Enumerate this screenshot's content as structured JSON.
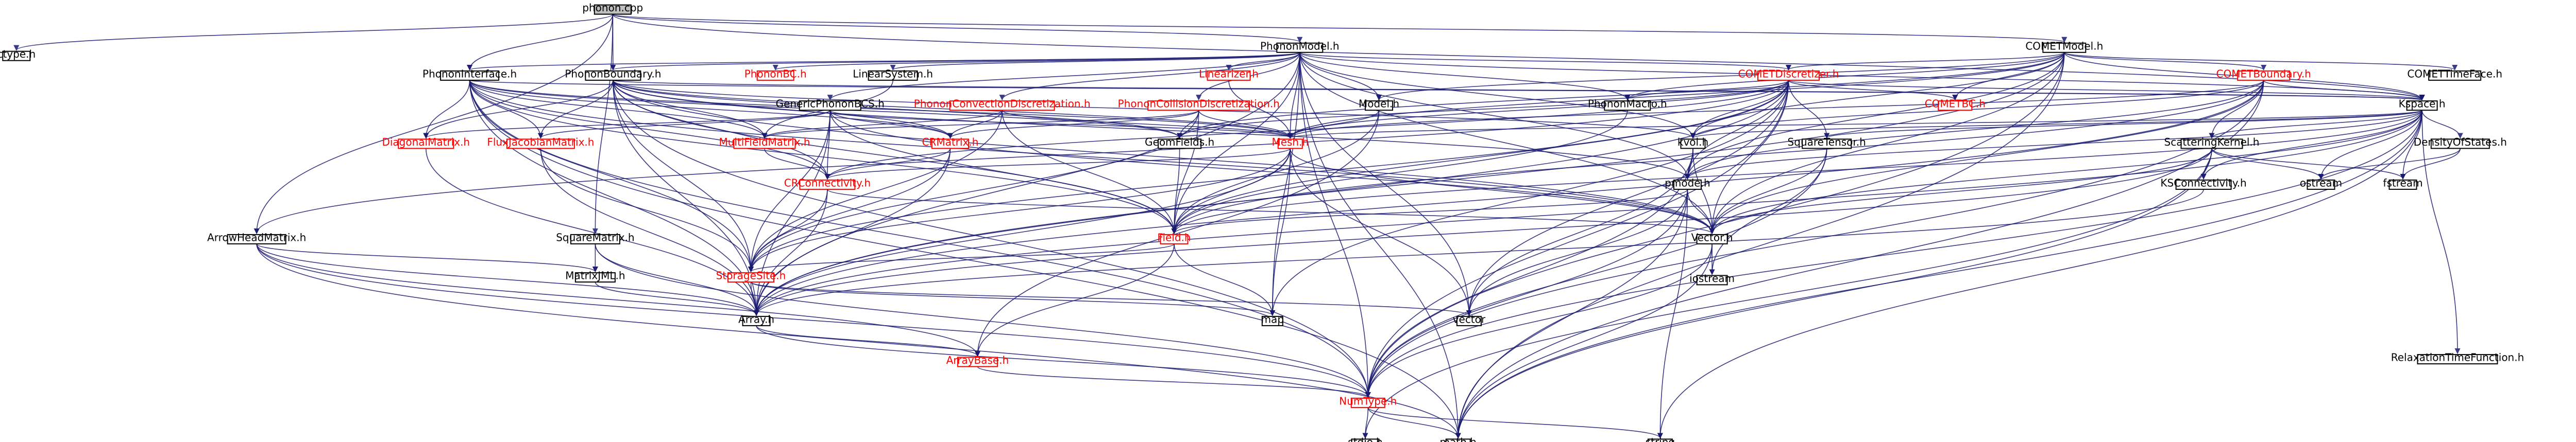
{
  "colors": {
    "edge": "#191970",
    "node_border": "#000000",
    "node_fill": "#ffffff",
    "root_fill": "#bfbfbf",
    "text_normal": "#000000",
    "text_linked": "#ff0000"
  },
  "root": "phonon.cpp",
  "nodes": [
    {
      "id": "phonon_cpp",
      "label": "phonon.cpp",
      "kind": "root"
    },
    {
      "id": "ctype_h",
      "label": "ctype.h",
      "kind": "normal"
    },
    {
      "id": "PhononModel_h",
      "label": "PhononModel.h",
      "kind": "normal"
    },
    {
      "id": "COMETModel_h",
      "label": "COMETModel.h",
      "kind": "normal"
    },
    {
      "id": "PhononInterface_h",
      "label": "PhononInterface.h",
      "kind": "normal"
    },
    {
      "id": "PhononBoundary_h",
      "label": "PhononBoundary.h",
      "kind": "normal"
    },
    {
      "id": "PhononBC_h",
      "label": "PhononBC.h",
      "kind": "linked"
    },
    {
      "id": "LinearSystem_h",
      "label": "LinearSystem.h",
      "kind": "normal"
    },
    {
      "id": "Linearizer_h",
      "label": "Linearizer.h",
      "kind": "linked"
    },
    {
      "id": "COMETDiscretizer_h",
      "label": "COMETDiscretizer.h",
      "kind": "linked"
    },
    {
      "id": "COMETBoundary_h",
      "label": "COMETBoundary.h",
      "kind": "linked"
    },
    {
      "id": "COMETTimeFace_h",
      "label": "COMETTimeFace.h",
      "kind": "normal"
    },
    {
      "id": "GenericPhononBCS_h",
      "label": "GenericPhononBCS.h",
      "kind": "normal"
    },
    {
      "id": "PhononConvectionDiscretization_h",
      "label": "PhononConvectionDiscretization.h",
      "kind": "linked"
    },
    {
      "id": "PhononCollisionDiscretization_h",
      "label": "PhononCollisionDiscretization.h",
      "kind": "linked"
    },
    {
      "id": "Model_h",
      "label": "Model.h",
      "kind": "normal"
    },
    {
      "id": "PhononMacro_h",
      "label": "PhononMacro.h",
      "kind": "normal"
    },
    {
      "id": "COMETBC_h",
      "label": "COMETBC.h",
      "kind": "linked"
    },
    {
      "id": "Kspace_h",
      "label": "Kspace.h",
      "kind": "normal"
    },
    {
      "id": "DiagonalMatrix_h",
      "label": "DiagonalMatrix.h",
      "kind": "linked"
    },
    {
      "id": "FluxJacobianMatrix_h",
      "label": "FluxJacobianMatrix.h",
      "kind": "linked"
    },
    {
      "id": "MultiFieldMatrix_h",
      "label": "MultiFieldMatrix.h",
      "kind": "linked"
    },
    {
      "id": "CRMatrix_h",
      "label": "CRMatrix.h",
      "kind": "linked"
    },
    {
      "id": "GeomFields_h",
      "label": "GeomFields.h",
      "kind": "normal"
    },
    {
      "id": "Mesh_h",
      "label": "Mesh.h",
      "kind": "linked"
    },
    {
      "id": "kvol_h",
      "label": "kvol.h",
      "kind": "normal"
    },
    {
      "id": "SquareTensor_h",
      "label": "SquareTensor.h",
      "kind": "normal"
    },
    {
      "id": "ScatteringKernel_h",
      "label": "ScatteringKernel.h",
      "kind": "normal"
    },
    {
      "id": "DensityOfStates_h",
      "label": "DensityOfStates.h",
      "kind": "normal"
    },
    {
      "id": "CRConnectivity_h",
      "label": "CRConnectivity.h",
      "kind": "linked"
    },
    {
      "id": "pmode_h",
      "label": "pmode.h",
      "kind": "normal"
    },
    {
      "id": "KSConnectivity_h",
      "label": "KSConnectivity.h",
      "kind": "normal"
    },
    {
      "id": "ostream",
      "label": "ostream",
      "kind": "normal"
    },
    {
      "id": "fstream",
      "label": "fstream",
      "kind": "normal"
    },
    {
      "id": "ArrowHeadMatrix_h",
      "label": "ArrowHeadMatrix.h",
      "kind": "normal"
    },
    {
      "id": "SquareMatrix_h",
      "label": "SquareMatrix.h",
      "kind": "normal"
    },
    {
      "id": "Field_h",
      "label": "Field.h",
      "kind": "linked"
    },
    {
      "id": "Vector_h",
      "label": "Vector.h",
      "kind": "normal"
    },
    {
      "id": "MatrixJML_h",
      "label": "MatrixJML.h",
      "kind": "normal"
    },
    {
      "id": "StorageSite_h",
      "label": "StorageSite.h",
      "kind": "linked"
    },
    {
      "id": "iostream",
      "label": "iostream",
      "kind": "normal"
    },
    {
      "id": "Array_h",
      "label": "Array.h",
      "kind": "normal"
    },
    {
      "id": "map",
      "label": "map",
      "kind": "normal"
    },
    {
      "id": "vector",
      "label": "vector",
      "kind": "normal"
    },
    {
      "id": "ArrayBase_h",
      "label": "ArrayBase.h",
      "kind": "linked"
    },
    {
      "id": "RelaxationTimeFunction_h",
      "label": "RelaxationTimeFunction.h",
      "kind": "normal"
    },
    {
      "id": "NumType_h",
      "label": "NumType.h",
      "kind": "linked"
    },
    {
      "id": "stdio_h",
      "label": "stdio.h",
      "kind": "normal"
    },
    {
      "id": "math_h",
      "label": "math.h",
      "kind": "normal"
    },
    {
      "id": "string",
      "label": "string",
      "kind": "normal"
    }
  ],
  "edges": [
    [
      "phonon_cpp",
      "ctype_h"
    ],
    [
      "phonon_cpp",
      "PhononModel_h"
    ],
    [
      "phonon_cpp",
      "COMETModel_h"
    ],
    [
      "phonon_cpp",
      "PhononInterface_h"
    ],
    [
      "phonon_cpp",
      "PhononBoundary_h"
    ],
    [
      "phonon_cpp",
      "ArrowHeadMatrix_h"
    ],
    [
      "phonon_cpp",
      "SquareMatrix_h"
    ],
    [
      "phonon_cpp",
      "Kspace_h"
    ],
    [
      "PhononModel_h",
      "PhononInterface_h"
    ],
    [
      "PhononModel_h",
      "PhononBoundary_h"
    ],
    [
      "PhononModel_h",
      "PhononBC_h"
    ],
    [
      "PhononModel_h",
      "LinearSystem_h"
    ],
    [
      "PhononModel_h",
      "Linearizer_h"
    ],
    [
      "PhononModel_h",
      "COMETDiscretizer_h"
    ],
    [
      "PhononModel_h",
      "GenericPhononBCS_h"
    ],
    [
      "PhononModel_h",
      "PhononConvectionDiscretization_h"
    ],
    [
      "PhononModel_h",
      "PhononCollisionDiscretization_h"
    ],
    [
      "PhononModel_h",
      "Model_h"
    ],
    [
      "PhononModel_h",
      "PhononMacro_h"
    ],
    [
      "PhononModel_h",
      "Kspace_h"
    ],
    [
      "PhononModel_h",
      "Mesh_h"
    ],
    [
      "PhononModel_h",
      "kvol_h"
    ],
    [
      "PhononModel_h",
      "pmode_h"
    ],
    [
      "PhononModel_h",
      "Field_h"
    ],
    [
      "PhononModel_h",
      "Vector_h"
    ],
    [
      "PhononModel_h",
      "Array_h"
    ],
    [
      "PhononModel_h",
      "map"
    ],
    [
      "PhononModel_h",
      "vector"
    ],
    [
      "PhononModel_h",
      "NumType_h"
    ],
    [
      "PhononModel_h",
      "math_h"
    ],
    [
      "COMETModel_h",
      "COMETDiscretizer_h"
    ],
    [
      "COMETModel_h",
      "COMETBoundary_h"
    ],
    [
      "COMETModel_h",
      "COMETTimeFace_h"
    ],
    [
      "COMETModel_h",
      "COMETBC_h"
    ],
    [
      "COMETModel_h",
      "Kspace_h"
    ],
    [
      "COMETModel_h",
      "Model_h"
    ],
    [
      "COMETModel_h",
      "PhononMacro_h"
    ],
    [
      "COMETModel_h",
      "Mesh_h"
    ],
    [
      "COMETModel_h",
      "kvol_h"
    ],
    [
      "COMETModel_h",
      "pmode_h"
    ],
    [
      "COMETModel_h",
      "Array_h"
    ],
    [
      "COMETModel_h",
      "NumType_h"
    ],
    [
      "COMETModel_h",
      "Vector_h"
    ],
    [
      "COMETModel_h",
      "math_h"
    ],
    [
      "COMETModel_h",
      "GeomFields_h"
    ],
    [
      "PhononInterface_h",
      "DiagonalMatrix_h"
    ],
    [
      "PhononInterface_h",
      "FluxJacobianMatrix_h"
    ],
    [
      "PhononInterface_h",
      "MultiFieldMatrix_h"
    ],
    [
      "PhononInterface_h",
      "CRMatrix_h"
    ],
    [
      "PhononInterface_h",
      "Mesh_h"
    ],
    [
      "PhononInterface_h",
      "Kspace_h"
    ],
    [
      "PhononInterface_h",
      "CRConnectivity_h"
    ],
    [
      "PhononInterface_h",
      "Field_h"
    ],
    [
      "PhononInterface_h",
      "StorageSite_h"
    ],
    [
      "PhononInterface_h",
      "Array_h"
    ],
    [
      "PhononInterface_h",
      "Vector_h"
    ],
    [
      "PhononInterface_h",
      "NumType_h"
    ],
    [
      "PhononInterface_h",
      "math_h"
    ],
    [
      "PhononInterface_h",
      "GeomFields_h"
    ],
    [
      "PhononBoundary_h",
      "DiagonalMatrix_h"
    ],
    [
      "PhononBoundary_h",
      "FluxJacobianMatrix_h"
    ],
    [
      "PhononBoundary_h",
      "MultiFieldMatrix_h"
    ],
    [
      "PhononBoundary_h",
      "CRMatrix_h"
    ],
    [
      "PhononBoundary_h",
      "Mesh_h"
    ],
    [
      "PhononBoundary_h",
      "Kspace_h"
    ],
    [
      "PhononBoundary_h",
      "CRConnectivity_h"
    ],
    [
      "PhononBoundary_h",
      "Field_h"
    ],
    [
      "PhononBoundary_h",
      "StorageSite_h"
    ],
    [
      "PhononBoundary_h",
      "Array_h"
    ],
    [
      "PhononBoundary_h",
      "Vector_h"
    ],
    [
      "PhononBoundary_h",
      "NumType_h"
    ],
    [
      "PhononBoundary_h",
      "pmode_h"
    ],
    [
      "PhononBoundary_h",
      "kvol_h"
    ],
    [
      "PhononBoundary_h",
      "GeomFields_h"
    ],
    [
      "LinearSystem_h",
      "MultiFieldMatrix_h"
    ],
    [
      "Linearizer_h",
      "Mesh_h"
    ],
    [
      "COMETDiscretizer_h",
      "COMETBC_h"
    ],
    [
      "COMETDiscretizer_h",
      "Kspace_h"
    ],
    [
      "COMETDiscretizer_h",
      "Mesh_h"
    ],
    [
      "COMETDiscretizer_h",
      "kvol_h"
    ],
    [
      "COMETDiscretizer_h",
      "pmode_h"
    ],
    [
      "COMETDiscretizer_h",
      "PhononMacro_h"
    ],
    [
      "COMETDiscretizer_h",
      "SquareTensor_h"
    ],
    [
      "COMETDiscretizer_h",
      "ArrowHeadMatrix_h"
    ],
    [
      "COMETDiscretizer_h",
      "Field_h"
    ],
    [
      "COMETDiscretizer_h",
      "Vector_h"
    ],
    [
      "COMETDiscretizer_h",
      "Array_h"
    ],
    [
      "COMETDiscretizer_h",
      "NumType_h"
    ],
    [
      "COMETDiscretizer_h",
      "CRConnectivity_h"
    ],
    [
      "COMETDiscretizer_h",
      "StorageSite_h"
    ],
    [
      "COMETDiscretizer_h",
      "GeomFields_h"
    ],
    [
      "COMETDiscretizer_h",
      "vector"
    ],
    [
      "COMETDiscretizer_h",
      "map"
    ],
    [
      "COMETBoundary_h",
      "Kspace_h"
    ],
    [
      "COMETBoundary_h",
      "Mesh_h"
    ],
    [
      "COMETBoundary_h",
      "kvol_h"
    ],
    [
      "COMETBoundary_h",
      "pmode_h"
    ],
    [
      "COMETBoundary_h",
      "ScatteringKernel_h"
    ],
    [
      "COMETBoundary_h",
      "Field_h"
    ],
    [
      "COMETBoundary_h",
      "Vector_h"
    ],
    [
      "COMETBoundary_h",
      "Array_h"
    ],
    [
      "COMETBoundary_h",
      "NumType_h"
    ],
    [
      "COMETBoundary_h",
      "math_h"
    ],
    [
      "GenericPhononBCS_h",
      "DiagonalMatrix_h"
    ],
    [
      "GenericPhononBCS_h",
      "FluxJacobianMatrix_h"
    ],
    [
      "GenericPhononBCS_h",
      "CRMatrix_h"
    ],
    [
      "GenericPhononBCS_h",
      "Mesh_h"
    ],
    [
      "GenericPhononBCS_h",
      "Field_h"
    ],
    [
      "GenericPhononBCS_h",
      "StorageSite_h"
    ],
    [
      "GenericPhononBCS_h",
      "Array_h"
    ],
    [
      "GenericPhononBCS_h",
      "CRConnectivity_h"
    ],
    [
      "GenericPhononBCS_h",
      "Vector_h"
    ],
    [
      "PhononConvectionDiscretization_h",
      "CRMatrix_h"
    ],
    [
      "PhononConvectionDiscretization_h",
      "Mesh_h"
    ],
    [
      "PhononConvectionDiscretization_h",
      "Field_h"
    ],
    [
      "PhononConvectionDiscretization_h",
      "StorageSite_h"
    ],
    [
      "PhononConvectionDiscretization_h",
      "MultiFieldMatrix_h"
    ],
    [
      "PhononCollisionDiscretization_h",
      "CRMatrix_h"
    ],
    [
      "PhononCollisionDiscretization_h",
      "Mesh_h"
    ],
    [
      "PhononCollisionDiscretization_h",
      "Field_h"
    ],
    [
      "PhononCollisionDiscretization_h",
      "StorageSite_h"
    ],
    [
      "PhononCollisionDiscretization_h",
      "GeomFields_h"
    ],
    [
      "PhononCollisionDiscretization_h",
      "MultiFieldMatrix_h"
    ],
    [
      "Model_h",
      "Mesh_h"
    ],
    [
      "Model_h",
      "Field_h"
    ],
    [
      "Model_h",
      "ArrayBase_h"
    ],
    [
      "PhononMacro_h",
      "Field_h"
    ],
    [
      "Kspace_h",
      "kvol_h"
    ],
    [
      "Kspace_h",
      "pmode_h"
    ],
    [
      "Kspace_h",
      "ScatteringKernel_h"
    ],
    [
      "Kspace_h",
      "DensityOfStates_h"
    ],
    [
      "Kspace_h",
      "KSConnectivity_h"
    ],
    [
      "Kspace_h",
      "ostream"
    ],
    [
      "Kspace_h",
      "fstream"
    ],
    [
      "Kspace_h",
      "Vector_h"
    ],
    [
      "Kspace_h",
      "Array_h"
    ],
    [
      "Kspace_h",
      "Field_h"
    ],
    [
      "Kspace_h",
      "RelaxationTimeFunction_h"
    ],
    [
      "Kspace_h",
      "math_h"
    ],
    [
      "Kspace_h",
      "string"
    ],
    [
      "Kspace_h",
      "NumType_h"
    ],
    [
      "Kspace_h",
      "SquareTensor_h"
    ],
    [
      "Kspace_h",
      "Mesh_h"
    ],
    [
      "DiagonalMatrix_h",
      "Array_h"
    ],
    [
      "FluxJacobianMatrix_h",
      "Array_h"
    ],
    [
      "FluxJacobianMatrix_h",
      "StorageSite_h"
    ],
    [
      "MultiFieldMatrix_h",
      "CRConnectivity_h"
    ],
    [
      "CRMatrix_h",
      "CRConnectivity_h"
    ],
    [
      "CRMatrix_h",
      "Array_h"
    ],
    [
      "CRMatrix_h",
      "StorageSite_h"
    ],
    [
      "GeomFields_h",
      "Field_h"
    ],
    [
      "Mesh_h",
      "CRConnectivity_h"
    ],
    [
      "Mesh_h",
      "StorageSite_h"
    ],
    [
      "Mesh_h",
      "Field_h"
    ],
    [
      "Mesh_h",
      "Array_h"
    ],
    [
      "Mesh_h",
      "Vector_h"
    ],
    [
      "Mesh_h",
      "map"
    ],
    [
      "Mesh_h",
      "vector"
    ],
    [
      "kvol_h",
      "pmode_h"
    ],
    [
      "kvol_h",
      "Vector_h"
    ],
    [
      "kvol_h",
      "NumType_h"
    ],
    [
      "kvol_h",
      "vector"
    ],
    [
      "SquareTensor_h",
      "Vector_h"
    ],
    [
      "SquareTensor_h",
      "NumType_h"
    ],
    [
      "SquareTensor_h",
      "iostream"
    ],
    [
      "ScatteringKernel_h",
      "ostream"
    ],
    [
      "ScatteringKernel_h",
      "fstream"
    ],
    [
      "ScatteringKernel_h",
      "KSConnectivity_h"
    ],
    [
      "ScatteringKernel_h",
      "Array_h"
    ],
    [
      "ScatteringKernel_h",
      "Vector_h"
    ],
    [
      "ScatteringKernel_h",
      "math_h"
    ],
    [
      "ScatteringKernel_h",
      "stdio_h"
    ],
    [
      "DensityOfStates_h",
      "ostream"
    ],
    [
      "DensityOfStates_h",
      "fstream"
    ],
    [
      "CRConnectivity_h",
      "StorageSite_h"
    ],
    [
      "CRConnectivity_h",
      "Array_h"
    ],
    [
      "CRConnectivity_h",
      "Vector_h"
    ],
    [
      "pmode_h",
      "Vector_h"
    ],
    [
      "pmode_h",
      "Field_h"
    ],
    [
      "pmode_h",
      "NumType_h"
    ],
    [
      "pmode_h",
      "math_h"
    ],
    [
      "pmode_h",
      "vector"
    ],
    [
      "pmode_h",
      "string"
    ],
    [
      "KSConnectivity_h",
      "Array_h"
    ],
    [
      "ArrowHeadMatrix_h",
      "Array_h"
    ],
    [
      "ArrowHeadMatrix_h",
      "MatrixJML_h"
    ],
    [
      "ArrowHeadMatrix_h",
      "NumType_h"
    ],
    [
      "ArrowHeadMatrix_h",
      "math_h"
    ],
    [
      "ArrowHeadMatrix_h",
      "ArrayBase_h"
    ],
    [
      "SquareMatrix_h",
      "Array_h"
    ],
    [
      "SquareMatrix_h",
      "MatrixJML_h"
    ],
    [
      "SquareMatrix_h",
      "NumType_h"
    ],
    [
      "Field_h",
      "StorageSite_h"
    ],
    [
      "Field_h",
      "ArrayBase_h"
    ],
    [
      "Field_h",
      "map"
    ],
    [
      "Vector_h",
      "NumType_h"
    ],
    [
      "Vector_h",
      "iostream"
    ],
    [
      "Vector_h",
      "math_h"
    ],
    [
      "MatrixJML_h",
      "Array_h"
    ],
    [
      "StorageSite_h",
      "Array_h"
    ],
    [
      "StorageSite_h",
      "map"
    ],
    [
      "StorageSite_h",
      "vector"
    ],
    [
      "Array_h",
      "ArrayBase_h"
    ],
    [
      "Array_h",
      "NumType_h"
    ],
    [
      "ArrayBase_h",
      "NumType_h"
    ],
    [
      "NumType_h",
      "stdio_h"
    ],
    [
      "NumType_h",
      "math_h"
    ],
    [
      "NumType_h",
      "string"
    ]
  ]
}
